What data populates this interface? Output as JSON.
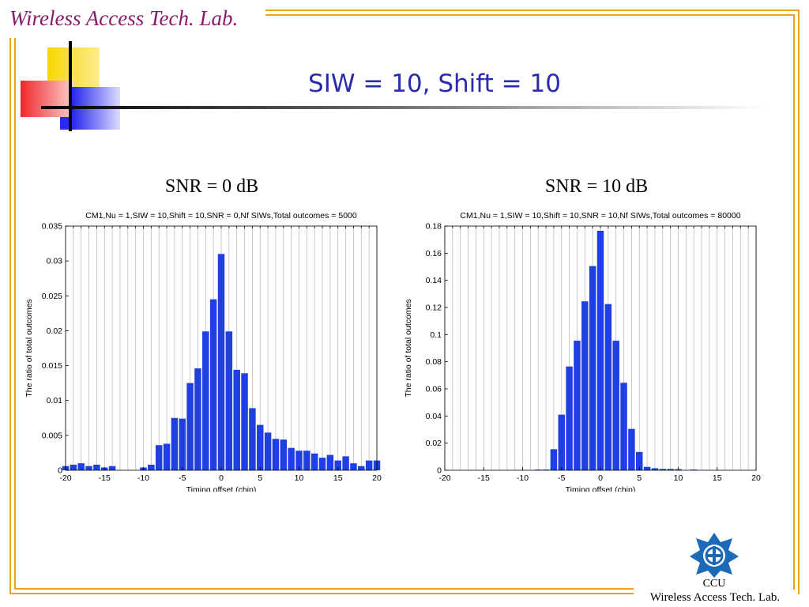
{
  "header": {
    "lab_title": "Wireless Access Tech. Lab.",
    "slide_title": "SIW = 10, Shift = 10"
  },
  "colors": {
    "frame": "#f0a020",
    "bar": "#1f3fe0",
    "title": "#2a2ab0",
    "lab_title": "#8a1a6a"
  },
  "panels": [
    {
      "heading": "SNR = 0 dB"
    },
    {
      "heading": "SNR = 10 dB"
    }
  ],
  "footer": {
    "short_name": "CCU",
    "lab_name": "Wireless Access Tech. Lab.",
    "logo": "ccu-emblem-icon"
  },
  "chart_data": [
    {
      "type": "bar",
      "title": "CM1,Nu = 1,SIW = 10,Shift = 10,SNR = 0,Nf SIWs,Total outcomes = 5000",
      "xlabel": "Timing offset (chip)",
      "ylabel": "The ratio of total outcomes",
      "xlim": [
        -20,
        20
      ],
      "ylim": [
        0,
        0.035
      ],
      "xticks": [
        -20,
        -15,
        -10,
        -5,
        0,
        5,
        10,
        15,
        20
      ],
      "yticks": [
        0,
        0.005,
        0.01,
        0.015,
        0.02,
        0.025,
        0.03,
        0.035
      ],
      "ytick_labels": [
        "0",
        "0.005",
        "0.01",
        "0.015",
        "0.02",
        "0.025",
        "0.03",
        "0.035"
      ],
      "grid": "vertical",
      "x": [
        -20,
        -19,
        -18,
        -17,
        -16,
        -15,
        -14,
        -13,
        -12,
        -11,
        -10,
        -9,
        -8,
        -7,
        -6,
        -5,
        -4,
        -3,
        -2,
        -1,
        0,
        1,
        2,
        3,
        4,
        5,
        6,
        7,
        8,
        9,
        10,
        11,
        12,
        13,
        14,
        15,
        16,
        17,
        18,
        19,
        20
      ],
      "values": [
        0.0006,
        0.0008,
        0.001,
        0.0006,
        0.0008,
        0.0004,
        0.0006,
        0,
        0,
        0,
        0.0004,
        0.0008,
        0.0036,
        0.0038,
        0.0075,
        0.0074,
        0.0125,
        0.0146,
        0.0199,
        0.0245,
        0.031,
        0.0199,
        0.0144,
        0.0139,
        0.0089,
        0.0065,
        0.0054,
        0.0045,
        0.0044,
        0.0032,
        0.0028,
        0.0028,
        0.0024,
        0.0018,
        0.0022,
        0.0014,
        0.002,
        0.001,
        0.0006,
        0.0014,
        0.0014
      ]
    },
    {
      "type": "bar",
      "title": "CM1,Nu = 1,SIW = 10,Shift = 10,SNR = 10,Nf SIWs,Total outcomes = 80000",
      "xlabel": "Timing offset (chip)",
      "ylabel": "The ratio of total outcomes",
      "xlim": [
        -20,
        20
      ],
      "ylim": [
        0,
        0.18
      ],
      "xticks": [
        -20,
        -15,
        -10,
        -5,
        0,
        5,
        10,
        15,
        20
      ],
      "yticks": [
        0,
        0.02,
        0.04,
        0.06,
        0.08,
        0.1,
        0.12,
        0.14,
        0.16,
        0.18
      ],
      "ytick_labels": [
        "0",
        "0.02",
        "0.04",
        "0.06",
        "0.08",
        "0.1",
        "0.12",
        "0.14",
        "0.16",
        "0.18"
      ],
      "grid": "vertical",
      "x": [
        -20,
        -19,
        -18,
        -17,
        -16,
        -15,
        -14,
        -13,
        -12,
        -11,
        -10,
        -9,
        -8,
        -7,
        -6,
        -5,
        -4,
        -3,
        -2,
        -1,
        0,
        1,
        2,
        3,
        4,
        5,
        6,
        7,
        8,
        9,
        10,
        11,
        12,
        13,
        14,
        15,
        16,
        17,
        18,
        19,
        20
      ],
      "values": [
        0,
        0,
        0,
        0,
        0,
        0,
        0,
        0,
        0,
        0,
        0,
        0,
        0.0005,
        0.0005,
        0.0155,
        0.041,
        0.0765,
        0.0955,
        0.1245,
        0.1505,
        0.1765,
        0.1225,
        0.0955,
        0.0645,
        0.0305,
        0.0135,
        0.0025,
        0.0015,
        0.001,
        0.001,
        0.0008,
        0,
        0.0005,
        0,
        0,
        0,
        0,
        0,
        0,
        0,
        0
      ]
    }
  ]
}
